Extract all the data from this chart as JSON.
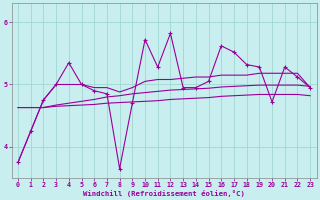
{
  "bg_color": "#c8eef0",
  "line_color": "#990099",
  "grid_color": "#a0d8d0",
  "xlabel": "Windchill (Refroidissement éolien,°C)",
  "xlabel_color": "#990099",
  "ylim": [
    3.5,
    6.3
  ],
  "xlim": [
    -0.5,
    23.5
  ],
  "yticks": [
    4,
    5,
    6
  ],
  "xticks": [
    0,
    1,
    2,
    3,
    4,
    5,
    6,
    7,
    8,
    9,
    10,
    11,
    12,
    13,
    14,
    15,
    16,
    17,
    18,
    19,
    20,
    21,
    22,
    23
  ],
  "series_jagged": [
    3.75,
    4.25,
    4.75,
    5.0,
    5.35,
    5.0,
    4.9,
    4.85,
    3.65,
    4.7,
    5.72,
    5.28,
    5.82,
    4.95,
    4.95,
    5.05,
    5.62,
    5.52,
    5.32,
    5.28,
    4.72,
    5.28,
    5.12,
    4.95
  ],
  "series_smooth1": [
    3.75,
    4.25,
    4.75,
    5.0,
    5.0,
    5.0,
    4.95,
    4.95,
    4.88,
    4.95,
    5.05,
    5.08,
    5.08,
    5.1,
    5.12,
    5.12,
    5.15,
    5.15,
    5.15,
    5.18,
    5.18,
    5.18,
    5.18,
    4.95
  ],
  "series_flat1": [
    4.63,
    4.63,
    4.63,
    4.65,
    4.66,
    4.67,
    4.68,
    4.7,
    4.71,
    4.72,
    4.73,
    4.74,
    4.76,
    4.77,
    4.78,
    4.79,
    4.81,
    4.82,
    4.83,
    4.84,
    4.84,
    4.84,
    4.84,
    4.82
  ],
  "series_flat2": [
    4.63,
    4.63,
    4.63,
    4.67,
    4.7,
    4.73,
    4.76,
    4.8,
    4.82,
    4.85,
    4.87,
    4.89,
    4.91,
    4.92,
    4.93,
    4.94,
    4.96,
    4.97,
    4.98,
    4.99,
    4.99,
    4.99,
    4.99,
    4.97
  ]
}
